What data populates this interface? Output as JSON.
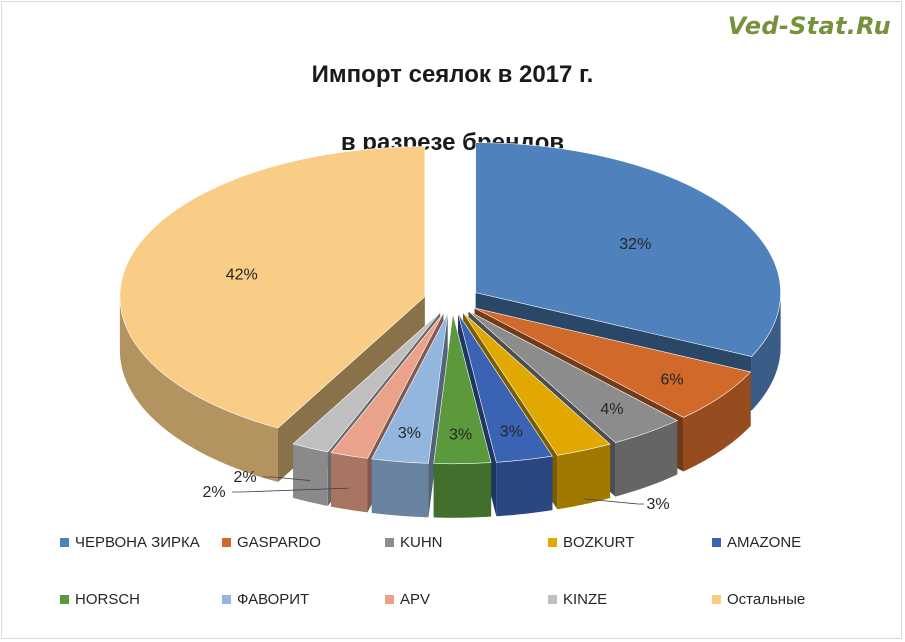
{
  "watermark": "Ved-Stat.Ru",
  "chart_data": {
    "type": "pie",
    "title": [
      "Импорт сеялок в 2017 г.",
      "в разрезе брендов"
    ],
    "legend_position": "bottom",
    "categories": [
      "ЧЕРВОНА ЗИРКА",
      "GASPARDO",
      "KUHN",
      "BOZKURT",
      "AMAZONE",
      "HORSCH",
      "ФАВОРИТ",
      "APV",
      "KINZE",
      "Остальные"
    ],
    "values": [
      32,
      6,
      4,
      3,
      3,
      3,
      3,
      2,
      2,
      42
    ],
    "labels": [
      "32%",
      "6%",
      "4%",
      "3%",
      "3%",
      "3%",
      "3%",
      "2%",
      "2%",
      "42%"
    ],
    "colors": [
      "#4f81bd",
      "#d0692a",
      "#8c8c8c",
      "#e0a800",
      "#3b63b3",
      "#5b9a3c",
      "#93b6df",
      "#eaa28a",
      "#bfbfbf",
      "#f9cd85"
    ]
  }
}
